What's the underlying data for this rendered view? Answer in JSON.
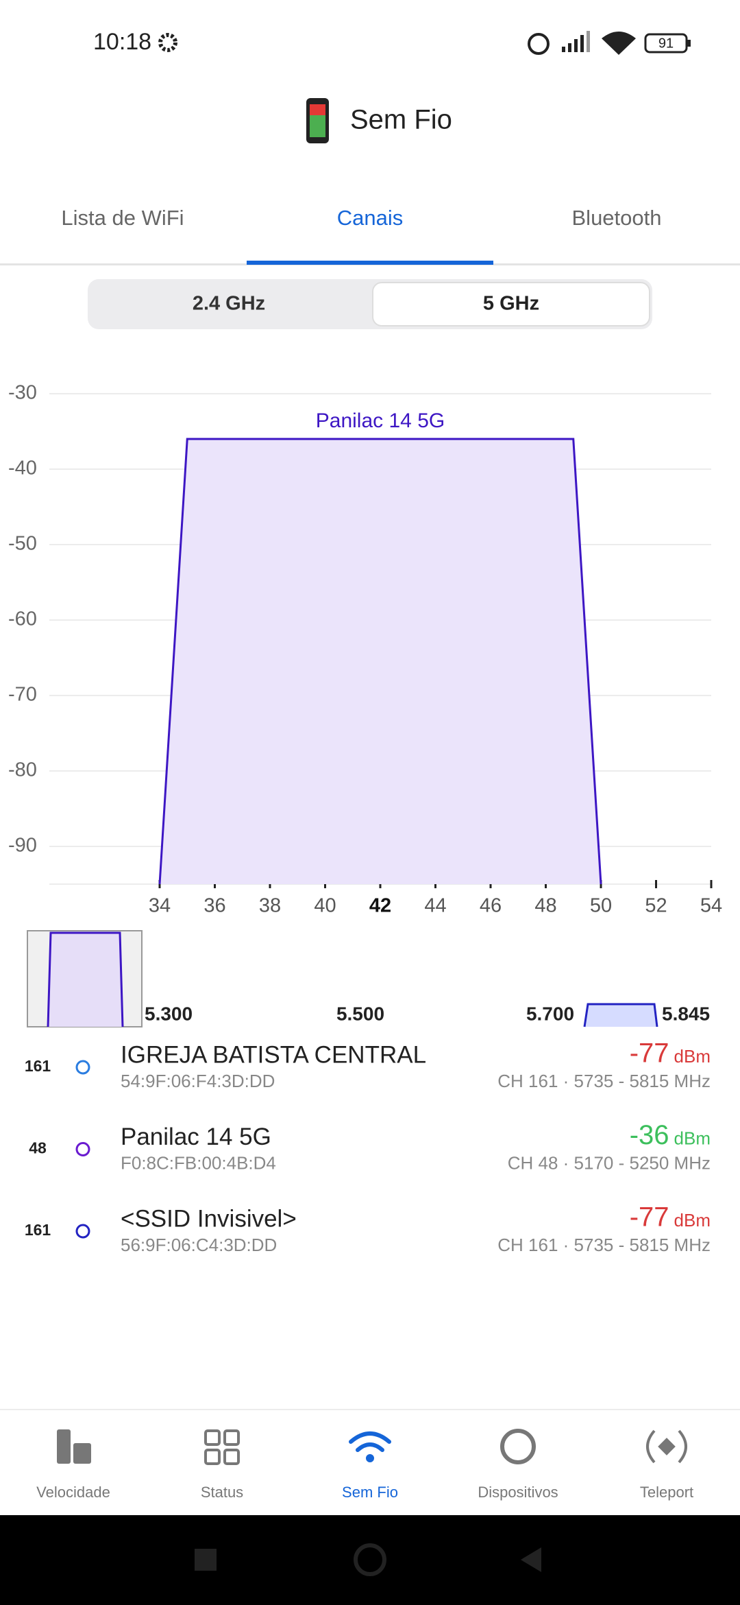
{
  "status_bar": {
    "time": "10:18",
    "battery": "91"
  },
  "header": {
    "title": "Sem Fio"
  },
  "tabs": [
    "Lista de WiFi",
    "Canais",
    "Bluetooth"
  ],
  "band_selector": [
    "2.4 GHz",
    "5 GHz"
  ],
  "chart_data": {
    "type": "area",
    "xlim": [
      30,
      54
    ],
    "xticks": [
      34,
      36,
      38,
      40,
      42,
      44,
      46,
      48,
      50,
      52,
      54
    ],
    "highlight_xtick": 42,
    "ylim": [
      -95,
      -30
    ],
    "yticks": [
      -30,
      -40,
      -50,
      -60,
      -70,
      -80,
      -90
    ],
    "grid": true,
    "series": [
      {
        "name": "Panilac 14 5G",
        "color": "#3d16c4",
        "fill": "#ebe4fb",
        "x": [
          34,
          35,
          49,
          50
        ],
        "values": [
          -95,
          -36,
          -36,
          -95
        ]
      }
    ]
  },
  "frequency_overview": {
    "labels": [
      "5.300",
      "5.500",
      "5.700",
      "5.845"
    ]
  },
  "networks": [
    {
      "channel": "161",
      "name": "IGREJA BATISTA CENTRAL",
      "mac": "54:9F:06:F4:3D:DD",
      "signal": "-77",
      "unit": "dBm",
      "details": "CH 161 · 5735 - 5815 MHz",
      "color": "#2b7de0",
      "signal_color": "#d93a3a"
    },
    {
      "channel": "48",
      "name": "Panilac 14 5G",
      "mac": "F0:8C:FB:00:4B:D4",
      "signal": "-36",
      "unit": "dBm",
      "details": "CH 48 · 5170 - 5250 MHz",
      "color": "#6a1bd0",
      "signal_color": "#3cbf5c"
    },
    {
      "channel": "161",
      "name": "<SSID Invisivel>",
      "mac": "56:9F:06:C4:3D:DD",
      "signal": "-77",
      "unit": "dBm",
      "details": "CH 161 · 5735 - 5815 MHz",
      "color": "#2323c2",
      "signal_color": "#d93a3a"
    }
  ],
  "bottom_nav": [
    "Velocidade",
    "Status",
    "Sem Fio",
    "Dispositivos",
    "Teleport"
  ]
}
